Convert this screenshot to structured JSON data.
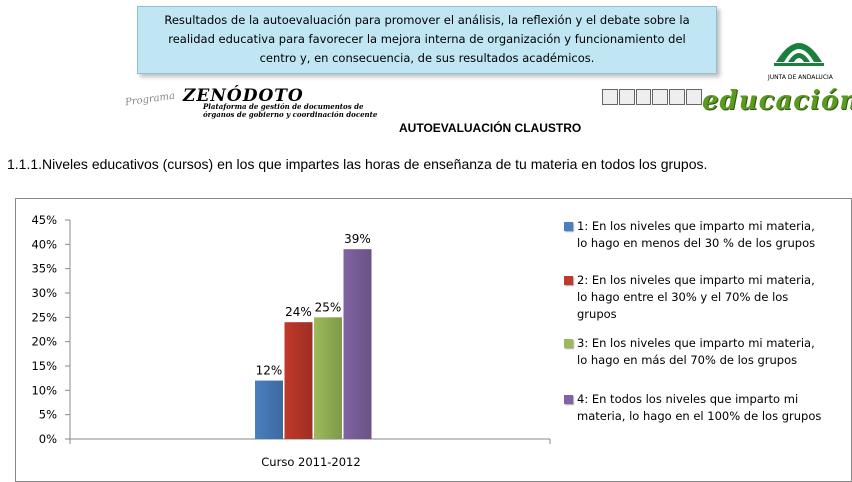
{
  "header": {
    "banner_lines": [
      "Resultados de la autoevaluación para promover  el análisis, la reflexión y el debate sobre la",
      "realidad educativa para favorecer la mejora interna de organización y funcionamiento  del",
      "centro y, en consecuencia, de sus resultados académicos."
    ],
    "junta_label": "JUNTA DE ANDALUCIA",
    "programa_label": "Programa",
    "zenodoto_title": "ZENÓDOTO",
    "zenodoto_subtitle_1": "Plataforma de gestión de documentos de",
    "zenodoto_subtitle_2": "órganos de gobierno y coordinación docente",
    "educacion_label": "educación",
    "section_title": "AUTOEVALUACIÓN CLAUSTRO"
  },
  "question": "1.1.1.Niveles educativos (cursos) en los que impartes las horas de enseñanza de tu materia en todos los grupos.",
  "colors": {
    "banner_bg": "#bfe6f2",
    "logo_green": "#1a7f3c",
    "educacion_green": "#5a9a1e"
  },
  "chart_data": {
    "type": "bar",
    "categories": [
      "Curso 2011-2012"
    ],
    "series": [
      {
        "name": "1: En los niveles que imparto mi materia, lo hago en menos del 30 % de los grupos",
        "values": [
          12
        ],
        "label": "12%",
        "color": "#4a7fc1"
      },
      {
        "name": "2: En los niveles que imparto mi materia, lo hago entre  el 30% y el 70% de los grupos",
        "values": [
          24
        ],
        "label": "24%",
        "color": "#c0392b"
      },
      {
        "name": "3: En los niveles que imparto mi materia, lo hago en más del 70% de los grupos",
        "values": [
          25
        ],
        "label": "25%",
        "color": "#9bbb59"
      },
      {
        "name": "4: En todos los niveles que imparto mi materia, lo hago en el 100% de los grupos",
        "values": [
          39
        ],
        "label": "39%",
        "color": "#8064a2"
      }
    ],
    "y_ticks": [
      "0%",
      "5%",
      "10%",
      "15%",
      "20%",
      "25%",
      "30%",
      "35%",
      "40%",
      "45%"
    ],
    "ylim": [
      0,
      45
    ],
    "grid": false,
    "legend_position": "right",
    "title": "",
    "xlabel": "",
    "ylabel": ""
  }
}
